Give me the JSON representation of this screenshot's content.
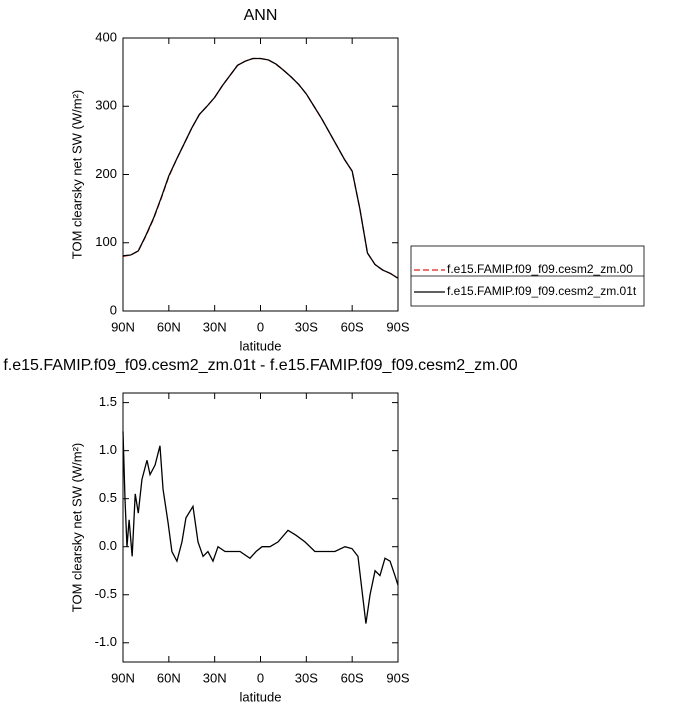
{
  "chart_data": [
    {
      "type": "line",
      "title": "ANN",
      "xlabel": "latitude",
      "ylabel": "TOM clearsky net SW (W/m²)",
      "x": [
        90,
        85,
        80,
        75,
        70,
        65,
        60,
        55,
        50,
        45,
        40,
        35,
        30,
        25,
        20,
        15,
        10,
        5,
        0,
        -5,
        -10,
        -15,
        -20,
        -25,
        -30,
        -35,
        -40,
        -45,
        -50,
        -55,
        -60,
        -65,
        -70,
        -75,
        -80,
        -85,
        -90
      ],
      "series": [
        {
          "name": "f.e15.FAMIP.f09_f09.cesm2_zm.00",
          "color": "#e0201b",
          "line_style": "dashed",
          "values": [
            80,
            82,
            88,
            110,
            135,
            165,
            197,
            222,
            245,
            268,
            288,
            300,
            313,
            330,
            345,
            360,
            366,
            370,
            370,
            368,
            362,
            353,
            343,
            332,
            318,
            300,
            282,
            262,
            242,
            222,
            205,
            150,
            85,
            68,
            60,
            55,
            48
          ]
        },
        {
          "name": "f.e15.FAMIP.f09_f09.cesm2_zm.01t",
          "color": "#000000",
          "line_style": "solid",
          "values": [
            81,
            82,
            88,
            111,
            136,
            166,
            198,
            222,
            245,
            268,
            288,
            300,
            313,
            330,
            345,
            360,
            366,
            370,
            370,
            368,
            362,
            353,
            343,
            332,
            318,
            300,
            282,
            262,
            242,
            222,
            205,
            150,
            85,
            68,
            60,
            55,
            48
          ]
        }
      ],
      "xlim": [
        90,
        -90
      ],
      "xticks": [
        {
          "value": 90,
          "label": "90N"
        },
        {
          "value": 60,
          "label": "60N"
        },
        {
          "value": 30,
          "label": "30N"
        },
        0,
        {
          "value": -30,
          "label": "30S"
        },
        {
          "value": -60,
          "label": "60S"
        },
        {
          "value": -90,
          "label": "90S"
        }
      ],
      "ylim": [
        0,
        400
      ],
      "yticks": [
        0,
        100,
        200,
        300,
        400
      ],
      "legend": "right"
    },
    {
      "type": "line",
      "title": "f.e15.FAMIP.f09_f09.cesm2_zm.01t - f.e15.FAMIP.f09_f09.cesm2_zm.00",
      "xlabel": "latitude",
      "ylabel": "TOM clearsky net SW (W/m²)",
      "x": [
        90,
        88.7,
        87.4,
        86,
        84,
        82,
        80,
        77.6,
        74.3,
        72.3,
        69,
        65.8,
        63.8,
        60.5,
        58,
        54.7,
        51.4,
        48.8,
        44.2,
        40.9,
        37.6,
        34.4,
        31.1,
        27.8,
        23.2,
        18.7,
        13.4,
        6.9,
        2.9,
        -1,
        -6.2,
        -11.5,
        -18,
        -23.2,
        -29.1,
        -35.6,
        -42.2,
        -48.7,
        -55.3,
        -59.9,
        -63.8,
        -66.4,
        -69,
        -71.7,
        -75,
        -78.2,
        -81.5,
        -84.8,
        -88,
        -90
      ],
      "series": [
        {
          "color": "#000000",
          "line_style": "solid",
          "values": [
            1.2,
            0.5,
            0.0,
            0.28,
            -0.1,
            0.55,
            0.35,
            0.7,
            0.9,
            0.75,
            0.85,
            1.05,
            0.6,
            0.25,
            -0.05,
            -0.15,
            0.05,
            0.3,
            0.42,
            0.05,
            -0.1,
            -0.05,
            -0.15,
            0.0,
            -0.05,
            -0.05,
            -0.05,
            -0.12,
            -0.05,
            0.0,
            0.0,
            0.05,
            0.17,
            0.12,
            0.05,
            -0.05,
            -0.05,
            -0.05,
            0.0,
            -0.02,
            -0.1,
            -0.45,
            -0.8,
            -0.5,
            -0.25,
            -0.3,
            -0.12,
            -0.15,
            -0.3,
            -0.4
          ]
        }
      ],
      "xlim": [
        90,
        -90
      ],
      "xticks": [
        {
          "value": 90,
          "label": "90N"
        },
        {
          "value": 60,
          "label": "60N"
        },
        {
          "value": 30,
          "label": "30N"
        },
        0,
        {
          "value": -30,
          "label": "30S"
        },
        {
          "value": -60,
          "label": "60S"
        },
        {
          "value": -90,
          "label": "90S"
        }
      ],
      "ylim": [
        -1.2,
        1.6
      ],
      "yticks": [
        -1.0,
        -0.5,
        0.0,
        0.5,
        1.0,
        1.5
      ]
    }
  ]
}
